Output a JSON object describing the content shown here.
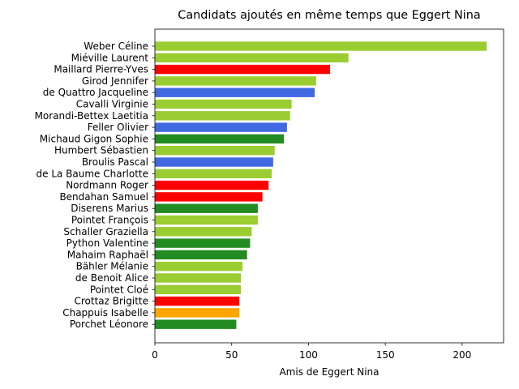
{
  "chart_data": {
    "type": "bar",
    "orientation": "horizontal",
    "title": "Candidats ajoutés en même temps que Eggert Nina",
    "xlabel": "Amis de Eggert Nina",
    "ylabel": "",
    "xlim": [
      0,
      227
    ],
    "xticks": [
      0,
      50,
      100,
      150,
      200
    ],
    "grid": false,
    "categories": [
      "Weber Céline",
      "Miéville Laurent",
      "Maillard Pierre-Yves",
      "Girod Jennifer",
      "de Quattro Jacqueline",
      "Cavalli Virginie",
      "Morandi-Bettex Laetitia",
      "Feller Olivier",
      "Michaud Gigon Sophie",
      "Humbert Sébastien",
      "Broulis Pascal",
      "de La Baume Charlotte",
      "Nordmann Roger",
      "Bendahan Samuel",
      "Diserens Marius",
      "Pointet François",
      "Schaller Graziella",
      "Python Valentine",
      "Mahaim Raphaël",
      "Bähler Mélanie",
      "de Benoit Alice",
      "Pointet Cloé",
      "Crottaz Brigitte",
      "Chappuis Isabelle",
      "Porchet Léonore"
    ],
    "values": [
      216,
      126,
      114,
      105,
      104,
      89,
      88,
      86,
      84,
      78,
      77,
      76,
      74,
      70,
      67,
      67,
      63,
      62,
      60,
      57,
      56,
      56,
      55,
      55,
      53
    ],
    "colors": [
      "#9acd32",
      "#9acd32",
      "#ff0000",
      "#9acd32",
      "#4169e1",
      "#9acd32",
      "#9acd32",
      "#4169e1",
      "#228b22",
      "#9acd32",
      "#4169e1",
      "#9acd32",
      "#ff0000",
      "#ff0000",
      "#228b22",
      "#9acd32",
      "#9acd32",
      "#228b22",
      "#228b22",
      "#9acd32",
      "#9acd32",
      "#9acd32",
      "#ff0000",
      "#ffa500",
      "#228b22"
    ]
  }
}
